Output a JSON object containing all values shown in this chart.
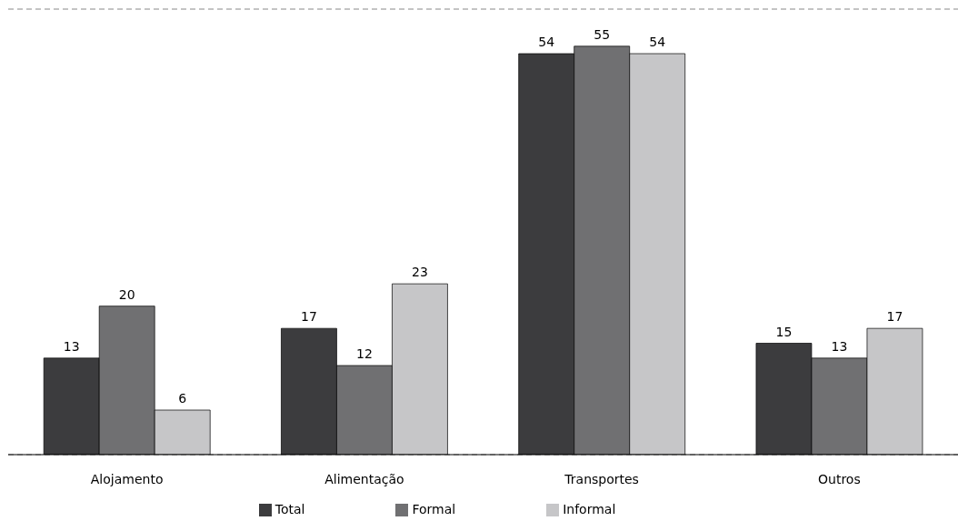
{
  "chart_data": {
    "type": "bar",
    "categories": [
      "Alojamento",
      "Alimentação",
      "Transportes",
      "Outros"
    ],
    "series": [
      {
        "name": "Total",
        "color": "#3c3c3e",
        "values": [
          13,
          17,
          54,
          15
        ]
      },
      {
        "name": "Formal",
        "color": "#707072",
        "values": [
          20,
          12,
          55,
          13
        ]
      },
      {
        "name": "Informal",
        "color": "#c6c6c8",
        "values": [
          6,
          23,
          54,
          17
        ]
      }
    ],
    "ylim": [
      0,
      60
    ],
    "grid": "y",
    "data_labels": true,
    "legend": "bottom"
  }
}
